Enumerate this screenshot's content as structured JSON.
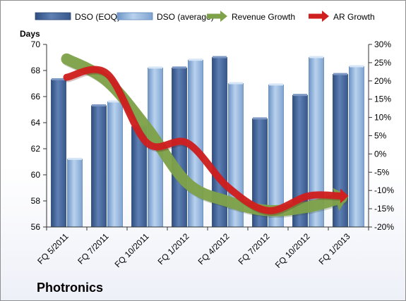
{
  "company": "Photronics",
  "chart_data": {
    "type": "bar",
    "left_axis_title": "Days",
    "categories": [
      "FQ 5/2011",
      "FQ 7/2011",
      "FQ 10/2011",
      "FQ 1/2012",
      "FQ 4/2012",
      "FQ 7/2012",
      "FQ 10/2012",
      "FQ 1/2013"
    ],
    "left_axis": {
      "min": 56,
      "max": 70,
      "ticks": [
        "56",
        "58",
        "60",
        "62",
        "64",
        "66",
        "68",
        "70"
      ]
    },
    "right_axis": {
      "min": -20,
      "max": 30,
      "ticks": [
        "-20%",
        "-15%",
        "-10%",
        "-5%",
        "0%",
        "5%",
        "10%",
        "15%",
        "20%",
        "25%",
        "30%"
      ]
    },
    "bar_series": [
      {
        "name": "DSO (EOQ)",
        "axis": "left",
        "color": "#4a6a9c",
        "values": [
          67.3,
          65.3,
          63.7,
          68.2,
          69.0,
          64.3,
          66.1,
          67.7
        ]
      },
      {
        "name": "DSO (average)",
        "axis": "left",
        "color": "#8cb0d8",
        "values": [
          61.2,
          65.6,
          68.2,
          68.8,
          67.0,
          66.9,
          69.0,
          68.3
        ]
      }
    ],
    "line_series": [
      {
        "name": "Revenue Growth",
        "axis": "right",
        "color": "#7ea24a",
        "values": [
          26,
          20,
          7,
          -8,
          -13,
          -15.5,
          -14.5,
          -11.5
        ]
      },
      {
        "name": "AR Growth",
        "axis": "right",
        "color": "#d01f1f",
        "values": [
          21,
          22,
          3,
          3,
          -9,
          -15.5,
          -11.5,
          -11.5
        ]
      }
    ],
    "legend_position": "top",
    "grid": false
  }
}
